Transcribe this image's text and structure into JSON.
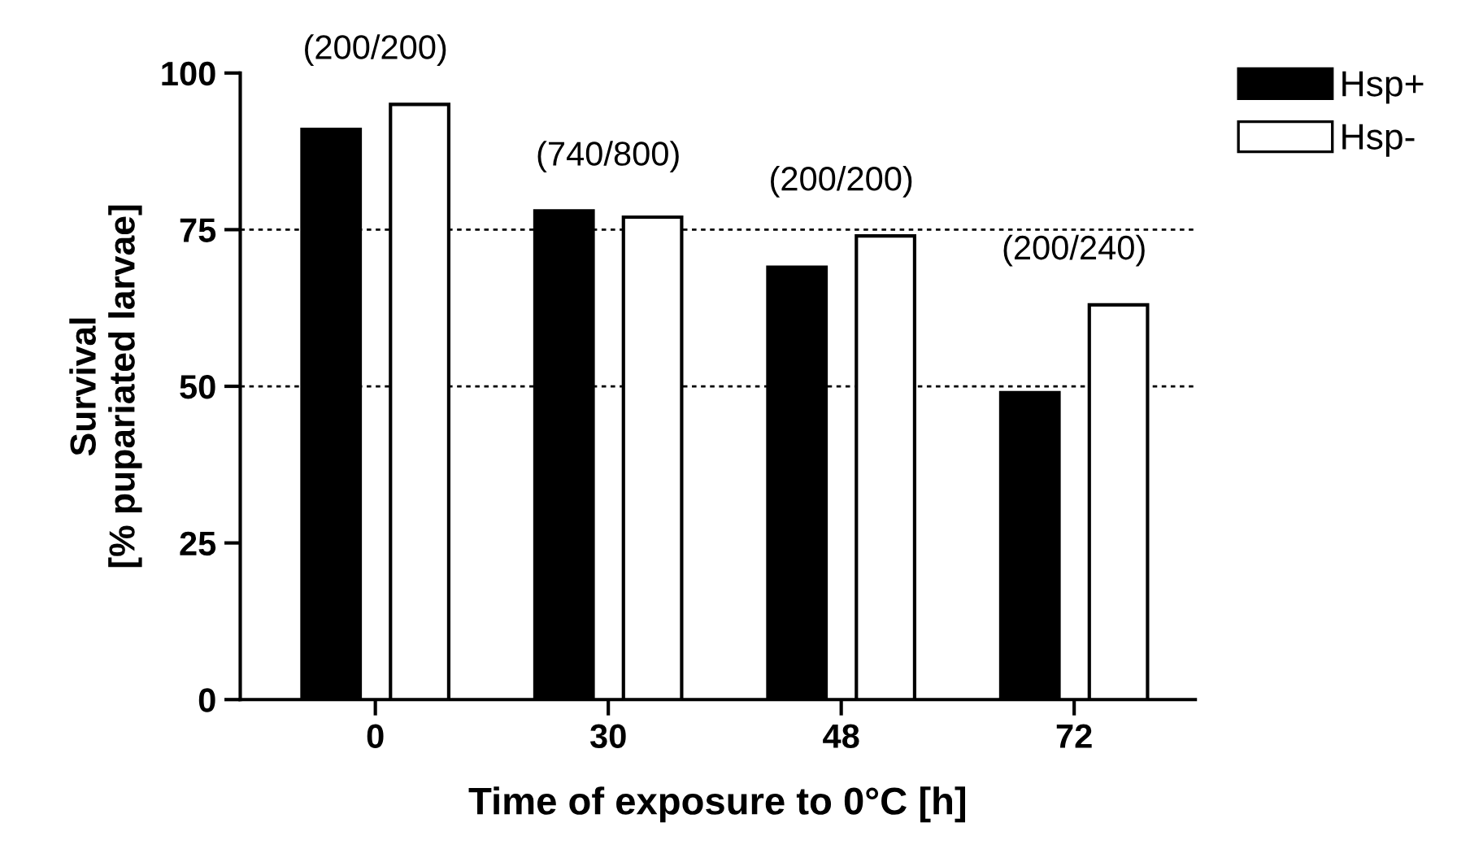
{
  "chart_data": {
    "type": "bar",
    "xlabel": "Time of exposure to 0°C [h]",
    "ylabel": "Survival\n[% pupariated larvae]",
    "categories": [
      "0",
      "30",
      "48",
      "72"
    ],
    "series": [
      {
        "name": "Hsp+",
        "color": "#000000",
        "values": [
          91,
          78,
          69,
          49
        ]
      },
      {
        "name": "Hsp-",
        "color": "#ffffff",
        "values": [
          95,
          77,
          74,
          63
        ]
      }
    ],
    "ylim": [
      0,
      100
    ],
    "yticks": [
      0,
      25,
      50,
      75,
      100
    ],
    "ref_lines": [
      {
        "axis": "y",
        "value": 75,
        "line_style": "dotted"
      },
      {
        "axis": "y",
        "value": 50,
        "line_style": "dotted"
      }
    ],
    "annotations": [
      "(200/200)",
      "(740/800)",
      "(200/200)",
      "(200/240)"
    ],
    "legend": "top right",
    "grid": false
  }
}
